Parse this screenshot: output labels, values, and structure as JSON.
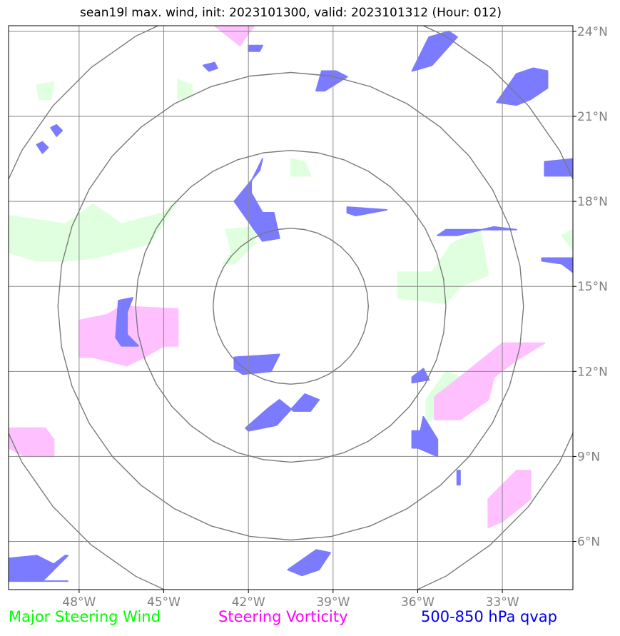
{
  "title": "sean19l max. wind, init: 2023101300, valid: 2023101312 (Hour: 012)",
  "map": {
    "lon_range": [
      -50.5,
      -30.5
    ],
    "lat_range": [
      4.3,
      24.2
    ],
    "lon_ticks": [
      {
        "value": -48,
        "label": "48°W"
      },
      {
        "value": -45,
        "label": "45°W"
      },
      {
        "value": -42,
        "label": "42°W"
      },
      {
        "value": -39,
        "label": "39°W"
      },
      {
        "value": -36,
        "label": "36°W"
      },
      {
        "value": -33,
        "label": "33°W"
      }
    ],
    "lat_ticks": [
      {
        "value": 24,
        "label": "24°N"
      },
      {
        "value": 21,
        "label": "21°N"
      },
      {
        "value": 18,
        "label": "18°N"
      },
      {
        "value": 15,
        "label": "15°N"
      },
      {
        "value": 12,
        "label": "12°N"
      },
      {
        "value": 9,
        "label": "9°N"
      },
      {
        "value": 6,
        "label": "6°N"
      }
    ],
    "grid": true,
    "range_rings": {
      "center_lon": -40.5,
      "center_lat": 14.3,
      "radii_deg": [
        2.75,
        5.5,
        8.25,
        11.0
      ]
    }
  },
  "layers": [
    {
      "name": "Major Steering Wind",
      "color": "#00ee00",
      "fill": "#dfffdf",
      "legend_color": "#00ff00",
      "regions": [
        [
          [
            -50.5,
            17.5
          ],
          [
            -48.5,
            17.2
          ],
          [
            -47.5,
            17.9
          ],
          [
            -46.5,
            17.2
          ],
          [
            -45,
            17.6
          ],
          [
            -44.5,
            18.0
          ],
          [
            -45.5,
            16.5
          ],
          [
            -47.5,
            16.0
          ],
          [
            -48.5,
            15.9
          ],
          [
            -49.5,
            15.9
          ],
          [
            -50.5,
            16.2
          ]
        ],
        [
          [
            -49.5,
            22.1
          ],
          [
            -48.9,
            22.2
          ],
          [
            -49.0,
            21.6
          ],
          [
            -49.4,
            21.6
          ]
        ],
        [
          [
            -44.5,
            22.3
          ],
          [
            -44.0,
            22.1
          ],
          [
            -44.0,
            21.7
          ],
          [
            -44.5,
            21.6
          ]
        ],
        [
          [
            -42.8,
            17.0
          ],
          [
            -41.8,
            17.1
          ],
          [
            -41.8,
            16.5
          ],
          [
            -42.5,
            15.8
          ],
          [
            -42.9,
            15.8
          ],
          [
            -42.6,
            16.2
          ]
        ],
        [
          [
            -40.5,
            19.5
          ],
          [
            -40.0,
            19.4
          ],
          [
            -39.8,
            18.9
          ],
          [
            -40.5,
            18.9
          ]
        ],
        [
          [
            -36.7,
            15.5
          ],
          [
            -35.5,
            15.5
          ],
          [
            -34.8,
            16.5
          ],
          [
            -33.8,
            17.0
          ],
          [
            -33.5,
            15.4
          ],
          [
            -34.5,
            15.0
          ],
          [
            -35.0,
            14.4
          ],
          [
            -36.7,
            14.6
          ]
        ],
        [
          [
            -35.7,
            11.0
          ],
          [
            -35.0,
            12.0
          ],
          [
            -34.5,
            11.8
          ],
          [
            -35.2,
            10.5
          ],
          [
            -35.7,
            10.2
          ]
        ],
        [
          [
            -32.5,
            22.4
          ],
          [
            -32.0,
            22.2
          ],
          [
            -32.3,
            21.9
          ],
          [
            -32.7,
            22.1
          ]
        ],
        [
          [
            -30.5,
            17.0
          ],
          [
            -30.9,
            16.8
          ],
          [
            -30.5,
            16.3
          ]
        ]
      ]
    },
    {
      "name": "Steering Vorticity",
      "color": "#ff00ff",
      "fill": "#ffc0ff",
      "legend_color": "#ff00ff",
      "regions": [
        [
          [
            -48.0,
            13.8
          ],
          [
            -47.0,
            14.0
          ],
          [
            -46.5,
            14.3
          ],
          [
            -44.5,
            14.2
          ],
          [
            -44.5,
            12.9
          ],
          [
            -45,
            12.9
          ],
          [
            -45.7,
            12.5
          ],
          [
            -46.3,
            12.2
          ],
          [
            -47.5,
            12.5
          ],
          [
            -48.0,
            12.5
          ]
        ],
        [
          [
            -43.2,
            24.2
          ],
          [
            -41.8,
            24.2
          ],
          [
            -42.3,
            23.5
          ]
        ],
        [
          [
            -50.5,
            10.0
          ],
          [
            -49.2,
            10.0
          ],
          [
            -48.9,
            9.6
          ],
          [
            -48.9,
            9.0
          ],
          [
            -49.9,
            9.0
          ],
          [
            -50.5,
            9.3
          ]
        ],
        [
          [
            -35.4,
            11.1
          ],
          [
            -34.5,
            11.8
          ],
          [
            -33.0,
            13.0
          ],
          [
            -31.5,
            13.0
          ],
          [
            -32.5,
            12.4
          ],
          [
            -33.3,
            11.8
          ],
          [
            -33.5,
            11.0
          ],
          [
            -34.5,
            10.3
          ],
          [
            -35.4,
            10.3
          ]
        ],
        [
          [
            -33.5,
            7.5
          ],
          [
            -32.5,
            8.5
          ],
          [
            -32.0,
            8.5
          ],
          [
            -32.0,
            7.5
          ],
          [
            -33.0,
            6.7
          ],
          [
            -33.5,
            6.5
          ]
        ]
      ]
    },
    {
      "name": "500-850 hPa qvap",
      "color": "#2a2aff",
      "fill": "#7b7bff",
      "legend_color": "#0000ee",
      "regions": [
        [
          [
            -42.5,
            18.0
          ],
          [
            -41.6,
            19.1
          ],
          [
            -41.5,
            19.5
          ],
          [
            -41.9,
            18.7
          ],
          [
            -41.9,
            18.3
          ],
          [
            -41.5,
            17.6
          ],
          [
            -41.1,
            17.6
          ],
          [
            -40.9,
            16.7
          ],
          [
            -41.5,
            16.6
          ],
          [
            -42.0,
            17.3
          ]
        ],
        [
          [
            -42.5,
            12.5
          ],
          [
            -40.9,
            12.6
          ],
          [
            -41.2,
            12.0
          ],
          [
            -42.2,
            11.9
          ],
          [
            -42.5,
            12.1
          ]
        ],
        [
          [
            -42.1,
            10.0
          ],
          [
            -41.3,
            10.7
          ],
          [
            -40.9,
            11.0
          ],
          [
            -40.4,
            10.6
          ],
          [
            -39.8,
            10.6
          ],
          [
            -39.5,
            11.0
          ],
          [
            -40.0,
            11.2
          ],
          [
            -41.0,
            10.1
          ],
          [
            -42.0,
            9.9
          ]
        ],
        [
          [
            -39.4,
            22.6
          ],
          [
            -38.9,
            22.6
          ],
          [
            -38.5,
            22.4
          ],
          [
            -39.3,
            21.9
          ],
          [
            -39.6,
            21.9
          ]
        ],
        [
          [
            -38.5,
            17.8
          ],
          [
            -37.1,
            17.7
          ],
          [
            -38.2,
            17.5
          ],
          [
            -38.5,
            17.6
          ]
        ],
        [
          [
            -35.6,
            23.8
          ],
          [
            -34.9,
            24.0
          ],
          [
            -34.6,
            23.8
          ],
          [
            -35.5,
            22.8
          ],
          [
            -36.2,
            22.6
          ]
        ],
        [
          [
            -33.3,
            17.1
          ],
          [
            -32.5,
            17.0
          ],
          [
            -35.0,
            17.0
          ],
          [
            -35.3,
            16.8
          ],
          [
            -34.6,
            16.8
          ]
        ],
        [
          [
            -32.5,
            22.5
          ],
          [
            -31.9,
            22.7
          ],
          [
            -31.4,
            22.6
          ],
          [
            -31.4,
            22.0
          ],
          [
            -32.0,
            21.6
          ],
          [
            -32.5,
            21.4
          ],
          [
            -33.2,
            21.5
          ]
        ],
        [
          [
            -31.5,
            19.4
          ],
          [
            -30.5,
            19.5
          ],
          [
            -30.5,
            18.9
          ],
          [
            -31.5,
            18.9
          ]
        ],
        [
          [
            -31.6,
            16.0
          ],
          [
            -30.5,
            16.0
          ],
          [
            -30.5,
            15.5
          ],
          [
            -30.9,
            15.8
          ],
          [
            -31.6,
            15.9
          ]
        ],
        [
          [
            -46.6,
            14.5
          ],
          [
            -46.1,
            14.6
          ],
          [
            -46.3,
            14.1
          ],
          [
            -46.3,
            13.3
          ],
          [
            -45.9,
            12.9
          ],
          [
            -46.5,
            12.9
          ],
          [
            -46.7,
            13.2
          ]
        ],
        [
          [
            -36.2,
            11.8
          ],
          [
            -35.8,
            12.1
          ],
          [
            -35.6,
            11.7
          ],
          [
            -36.2,
            11.6
          ]
        ],
        [
          [
            -36.2,
            9.9
          ],
          [
            -35.9,
            9.9
          ],
          [
            -35.8,
            10.4
          ],
          [
            -35.3,
            9.6
          ],
          [
            -35.3,
            9.0
          ],
          [
            -36.0,
            9.3
          ],
          [
            -36.2,
            9.3
          ]
        ],
        [
          [
            -49.5,
            20.0
          ],
          [
            -49.3,
            20.1
          ],
          [
            -49.1,
            19.9
          ],
          [
            -49.3,
            19.7
          ]
        ],
        [
          [
            -49.0,
            20.6
          ],
          [
            -48.8,
            20.7
          ],
          [
            -48.6,
            20.5
          ],
          [
            -48.8,
            20.3
          ]
        ],
        [
          [
            -43.6,
            22.8
          ],
          [
            -43.2,
            22.9
          ],
          [
            -43.1,
            22.7
          ],
          [
            -43.4,
            22.6
          ]
        ],
        [
          [
            -42.0,
            23.5
          ],
          [
            -41.5,
            23.5
          ],
          [
            -41.6,
            23.3
          ],
          [
            -42.0,
            23.3
          ]
        ],
        [
          [
            -50.5,
            5.4
          ],
          [
            -49.5,
            5.5
          ],
          [
            -48.9,
            5.2
          ],
          [
            -48.5,
            5.5
          ],
          [
            -48.4,
            5.5
          ],
          [
            -49.3,
            4.6
          ],
          [
            -48.4,
            4.6
          ],
          [
            -50.5,
            4.6
          ]
        ],
        [
          [
            -40.6,
            5.0
          ],
          [
            -39.6,
            5.7
          ],
          [
            -39.1,
            5.6
          ],
          [
            -39.5,
            5.0
          ],
          [
            -40.1,
            4.8
          ]
        ],
        [
          [
            -34.6,
            8.5
          ],
          [
            -34.5,
            8.5
          ],
          [
            -34.5,
            8.0
          ],
          [
            -34.6,
            8.0
          ]
        ]
      ]
    }
  ]
}
